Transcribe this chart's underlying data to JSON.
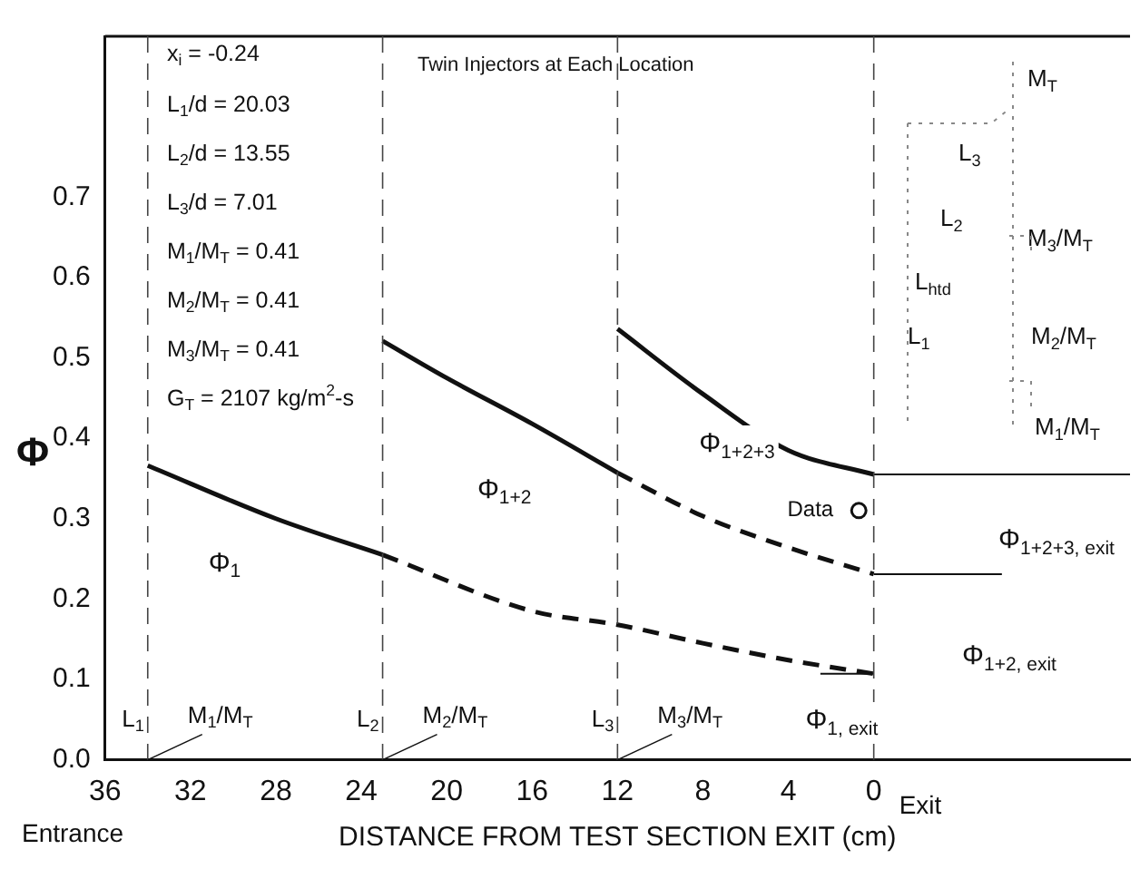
{
  "chart_data": {
    "type": "line",
    "xlabel": "DISTANCE FROM TEST SECTION EXIT (cm)",
    "ylabel": "Φ",
    "xlim": [
      36,
      -12
    ],
    "xticks": [
      36,
      32,
      28,
      24,
      20,
      16,
      12,
      8,
      4,
      0
    ],
    "ylim": [
      0,
      0.9
    ],
    "yticks": [
      {
        "value": 0,
        "label": "0.0"
      },
      {
        "value": 0.1,
        "label": "0.1"
      },
      {
        "value": 0.2,
        "label": "0.2"
      },
      {
        "value": 0.3,
        "label": "0.3"
      },
      {
        "value": 0.4,
        "label": "0.4"
      },
      {
        "value": 0.5,
        "label": "0.5"
      },
      {
        "value": 0.6,
        "label": "0.6"
      },
      {
        "value": 0.7,
        "label": "0.7"
      }
    ],
    "grid": false,
    "legend": false,
    "series": [
      {
        "type": "line",
        "color": "#111111",
        "line_style": "solid",
        "marker": "none",
        "x": [
          34,
          28,
          23
        ],
        "values": [
          0.366,
          0.3,
          0.255
        ]
      },
      {
        "type": "line",
        "color": "#111111",
        "line_style": "dashed",
        "marker": "none",
        "x": [
          23,
          16,
          12,
          8,
          4,
          0
        ],
        "values": [
          0.255,
          0.185,
          0.168,
          0.145,
          0.124,
          0.107
        ]
      },
      {
        "type": "line",
        "color": "#111111",
        "line_style": "solid",
        "marker": "none",
        "x": [
          23,
          20,
          16,
          12
        ],
        "values": [
          0.521,
          0.475,
          0.418,
          0.357
        ]
      },
      {
        "type": "line",
        "color": "#111111",
        "line_style": "dashed",
        "marker": "none",
        "x": [
          12,
          8,
          4,
          0
        ],
        "values": [
          0.357,
          0.303,
          0.264,
          0.231
        ]
      },
      {
        "type": "line",
        "color": "#111111",
        "line_style": "solid",
        "marker": "none",
        "x": [
          12,
          8,
          4,
          0
        ],
        "values": [
          0.536,
          0.455,
          0.385,
          0.355
        ]
      },
      {
        "type": "line",
        "color": "#111111",
        "line_style": "solid",
        "marker": "none",
        "x": [
          0,
          -12
        ],
        "values": [
          0.355,
          0.355
        ]
      },
      {
        "type": "line",
        "color": "#111111",
        "line_style": "solid",
        "marker": "none",
        "x": [
          0,
          -6
        ],
        "values": [
          0.231,
          0.231
        ]
      },
      {
        "type": "line",
        "color": "#111111",
        "line_style": "solid",
        "marker": "none",
        "x": [
          2.5,
          0
        ],
        "values": [
          0.107,
          0.107
        ]
      },
      {
        "type": "scatter",
        "name": "Data",
        "color": "#111111",
        "marker": "circle",
        "x": [
          0.7
        ],
        "values": [
          0.31
        ]
      }
    ],
    "ref_lines": [
      {
        "axis": "x",
        "value": 34,
        "label": "L$_{1}$",
        "line_style": "dashed"
      },
      {
        "axis": "x",
        "value": 23,
        "label": "L$_{2}$",
        "line_style": "dashed"
      },
      {
        "axis": "x",
        "value": 12,
        "label": "L$_{3}$",
        "line_style": "dashed"
      },
      {
        "axis": "x",
        "value": 0,
        "line_style": "dashed"
      }
    ],
    "annotations": [
      "x$_{i}$ = -0.24",
      "L$_{1}$/d = 20.03",
      "L$_{2}$/d = 13.55",
      "L$_{3}$/d = 7.01",
      "M$_{1}$/M$_{T}$ = 0.41",
      "M$_{2}$/M$_{T}$ = 0.41",
      "M$_{3}$/M$_{T}$ = 0.41",
      "G$_{T}$ = 2107 kg/m$^{2}$-s",
      "Twin Injectors at Each Location",
      "Entrance",
      "Exit",
      "M$_{T}$",
      "L$_{3}$",
      "L$_{2}$",
      "M$_{3}$/M$_{T}$",
      "L$_{htd}$",
      "M$_{2}$/M$_{T}$",
      "L$_{1}$",
      "M$_{1}$/M$_{T}$",
      "Φ$_{1+2+3}$",
      "Φ$_{1+2, exit}$",
      "Φ$_{1+2+3, exit}$",
      {
        "text": "Φ$_{1}$",
        "x": 30.4,
        "y": 0.244
      },
      {
        "text": "Φ$_{1+2}$",
        "x": 17.3,
        "y": 0.335
      },
      {
        "text": "M$_{1}$/M$_{T}$",
        "x": 34,
        "y": 0
      },
      {
        "text": "M$_{2}$/M$_{T}$",
        "x": 23,
        "y": 0
      },
      {
        "text": "M$_{3}$/M$_{T}$",
        "x": 12,
        "y": 0
      },
      {
        "text": "Φ$_{1, exit}$",
        "x": 1.5,
        "y": 0.048
      }
    ]
  }
}
